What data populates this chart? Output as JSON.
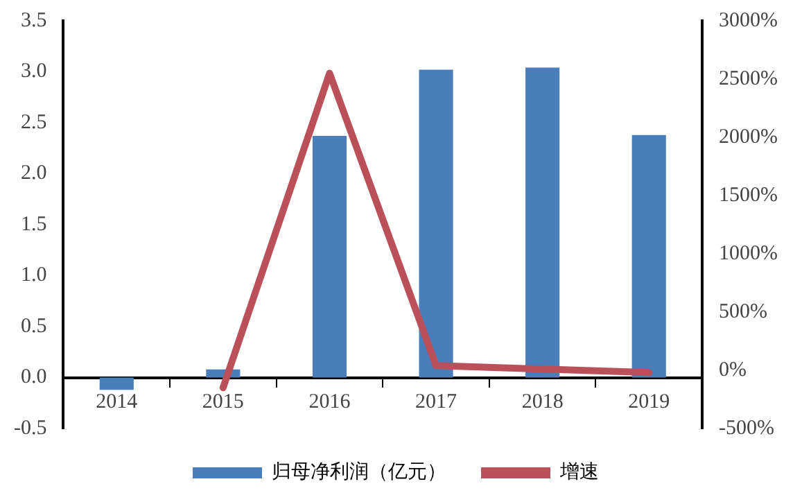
{
  "chart_data": {
    "type": "bar",
    "categories": [
      "2014",
      "2015",
      "2016",
      "2017",
      "2018",
      "2019"
    ],
    "series": [
      {
        "name": "归母净利润（亿元）",
        "color": "#4a7ebb",
        "values": [
          -0.12,
          0.08,
          2.37,
          3.02,
          3.04,
          2.38
        ]
      },
      {
        "name": "增速",
        "type": "line",
        "axis": "y2",
        "color": "#b9505a",
        "values": [
          null,
          -150,
          2550,
          40,
          10,
          -20
        ]
      }
    ],
    "ylim": [
      -0.5,
      3.5
    ],
    "yticks": [
      {
        "value": -0.5,
        "label": "-0.5"
      },
      {
        "value": 0,
        "label": "0.0"
      },
      {
        "value": 0.5,
        "label": "0.5"
      },
      {
        "value": 1,
        "label": "1.0"
      },
      {
        "value": 1.5,
        "label": "1.5"
      },
      {
        "value": 2,
        "label": "2.0"
      },
      {
        "value": 2.5,
        "label": "2.5"
      },
      {
        "value": 3,
        "label": "3.0"
      },
      {
        "value": 3.5,
        "label": "3.5"
      }
    ],
    "y2lim": [
      -500,
      3000
    ],
    "y2ticks": [
      {
        "value": -500,
        "label": "-500%"
      },
      {
        "value": 0,
        "label": "0%"
      },
      {
        "value": 500,
        "label": "500%"
      },
      {
        "value": 1000,
        "label": "1000%"
      },
      {
        "value": 1500,
        "label": "1500%"
      },
      {
        "value": 2000,
        "label": "2000%"
      },
      {
        "value": 2500,
        "label": "2500%"
      },
      {
        "value": 3000,
        "label": "3000%"
      }
    ],
    "grid": false,
    "legend": "bottom",
    "marker": "none",
    "line_style": "solid"
  }
}
